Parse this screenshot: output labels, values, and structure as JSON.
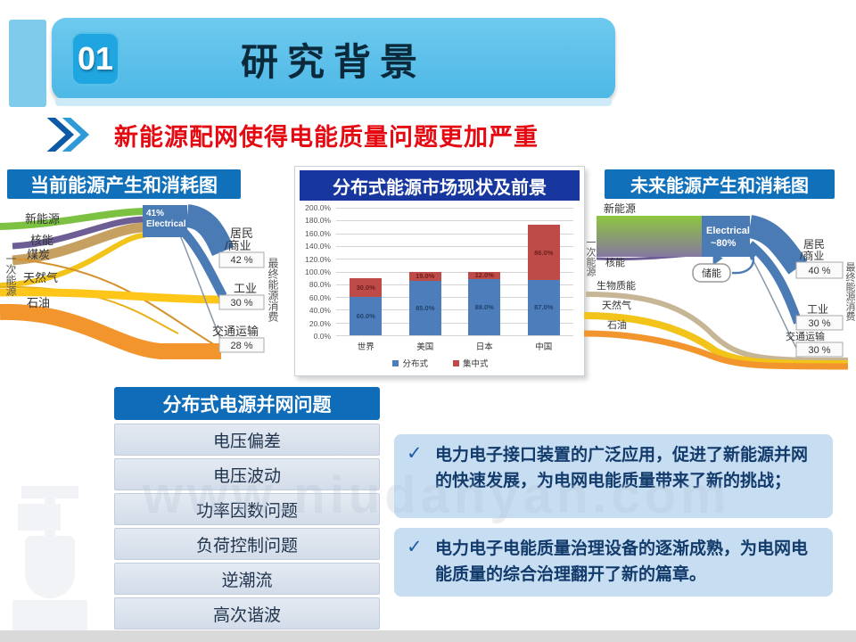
{
  "slide": {
    "section_number": "01",
    "title": "研究背景",
    "subtitle": "新能源配网使得电能质量问题更加严重"
  },
  "left_sankey": {
    "title": "当前能源产生和消耗图",
    "axis_left": "一次能源",
    "axis_right": "最终能源消费",
    "sources": [
      "新能源",
      "核能",
      "煤炭",
      "天然气",
      "石油"
    ],
    "hub_pct": "41%",
    "hub_name": "Electrical",
    "outputs": [
      {
        "line1": "居民",
        "line2": "/商业",
        "pct": "42 %"
      },
      {
        "line1": "工业",
        "pct": "30 %"
      },
      {
        "line1": "交通运输",
        "pct": "28 %"
      }
    ]
  },
  "right_sankey": {
    "title": "未来能源产生和消耗图",
    "axis_left": "一次能源",
    "axis_right": "最终能源消费",
    "sources": [
      "新能源",
      "核能",
      "生物质能",
      "天然气",
      "石油"
    ],
    "hub_line1": "Electrical",
    "hub_line2": "~80%",
    "storage_label": "储能",
    "outputs": [
      {
        "line1": "居民",
        "line2": "/商业",
        "pct": "40 %"
      },
      {
        "line1": "工业",
        "pct": "30 %"
      },
      {
        "line1": "交通运输",
        "pct": "30 %"
      }
    ]
  },
  "chart_data": {
    "type": "bar",
    "stacked": true,
    "title": "分布式能源市场现状及前景",
    "categories": [
      "世界",
      "美国",
      "日本",
      "中国"
    ],
    "series": [
      {
        "name": "分布式",
        "color": "#4d7ebb",
        "label_color": "#17375e",
        "values": [
          60,
          85,
          88,
          87
        ]
      },
      {
        "name": "集中式",
        "color": "#be4b48",
        "label_color": "#5e1715",
        "values": [
          30,
          15,
          12,
          86
        ]
      }
    ],
    "ylim": [
      0,
      200
    ],
    "ytick_step": 20,
    "ytick_suffix": "%",
    "grid": true,
    "legend_position": "bottom"
  },
  "issues": {
    "title": "分布式电源并网问题",
    "items": [
      "电压偏差",
      "电压波动",
      "功率因数问题",
      "负荷控制问题",
      "逆潮流",
      "高次谐波"
    ]
  },
  "callouts": {
    "check": "✓",
    "items": [
      "电力电子接口装置的广泛应用，促进了新能源并网的快速发展，为电网电能质量带来了新的挑战；",
      "电力电子电能质量治理设备的逐渐成熟，为电网电能质量的综合治理翻开了新的篇章。"
    ]
  },
  "watermark": {
    "text": "www.niudanyan.com"
  },
  "colors": {
    "banner_blue": "#5ec2ea",
    "badge_blue": "#1fa5df",
    "title_navy": "#0a2a3c",
    "subtitle_red": "#e50a12",
    "panel_header_blue": "#1070ba",
    "panel_header_navy": "#17379e",
    "bar_blue": "#4d7ebb",
    "bar_red": "#be4b48",
    "flow_green": "#7cc141",
    "flow_purple": "#6c5e94",
    "flow_tan": "#c6a061",
    "flow_yellow": "#f2c318",
    "flow_orange": "#f2952d",
    "flow_blue": "#4b7bb4"
  }
}
